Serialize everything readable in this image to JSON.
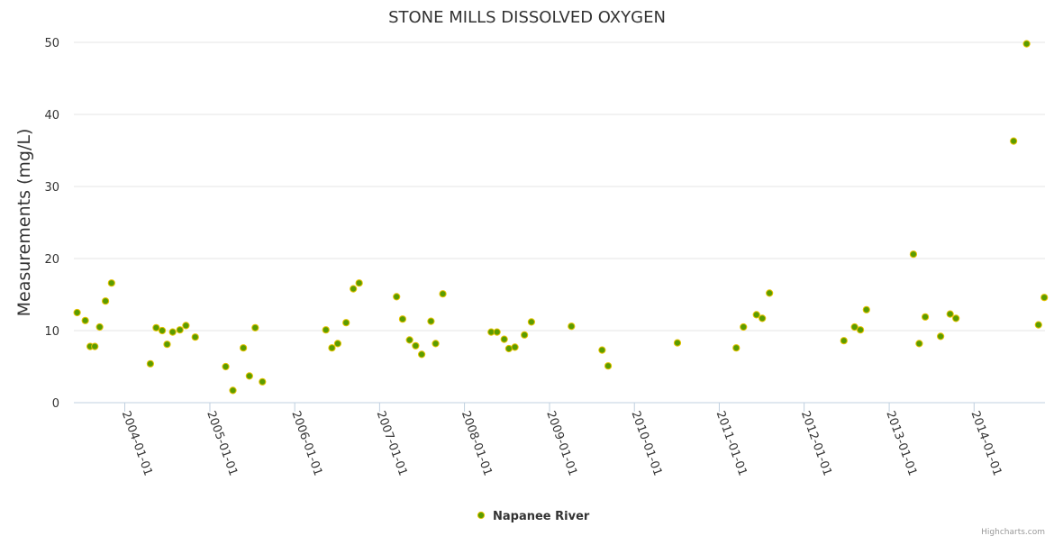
{
  "chart_data": {
    "type": "scatter",
    "title": "STONE MILLS DISSOLVED OXYGEN",
    "xlabel": "",
    "ylabel": "Measurements (mg/L)",
    "ylim": [
      0,
      50
    ],
    "yticks": [
      0,
      10,
      20,
      30,
      40,
      50
    ],
    "xlim": [
      "2003-05-27",
      "2014-11-02"
    ],
    "xticks": [
      "2004-01-01",
      "2005-01-01",
      "2006-01-01",
      "2007-01-01",
      "2008-01-01",
      "2009-01-01",
      "2010-01-01",
      "2011-01-01",
      "2012-01-01",
      "2013-01-01",
      "2014-01-01"
    ],
    "grid": true,
    "legend_position": "bottom-center",
    "series": [
      {
        "name": "Napanee River",
        "color": "#5b9c00",
        "edge_color": "#e6c200",
        "points": [
          [
            "2003-06-10",
            12.5
          ],
          [
            "2003-07-15",
            11.4
          ],
          [
            "2003-08-05",
            7.8
          ],
          [
            "2003-08-25",
            7.8
          ],
          [
            "2003-09-15",
            10.5
          ],
          [
            "2003-10-10",
            14.1
          ],
          [
            "2003-11-05",
            16.6
          ],
          [
            "2004-04-20",
            5.4
          ],
          [
            "2004-05-15",
            10.4
          ],
          [
            "2004-06-10",
            10.0
          ],
          [
            "2004-07-01",
            8.1
          ],
          [
            "2004-07-25",
            9.8
          ],
          [
            "2004-08-25",
            10.1
          ],
          [
            "2004-09-20",
            10.7
          ],
          [
            "2004-10-30",
            9.1
          ],
          [
            "2005-03-10",
            5.0
          ],
          [
            "2005-04-10",
            1.7
          ],
          [
            "2005-05-25",
            7.6
          ],
          [
            "2005-06-20",
            3.7
          ],
          [
            "2005-07-15",
            10.4
          ],
          [
            "2005-08-15",
            2.9
          ],
          [
            "2006-05-15",
            10.1
          ],
          [
            "2006-06-10",
            7.6
          ],
          [
            "2006-07-05",
            8.2
          ],
          [
            "2006-08-10",
            11.1
          ],
          [
            "2006-09-10",
            15.8
          ],
          [
            "2006-10-05",
            16.6
          ],
          [
            "2007-03-15",
            14.7
          ],
          [
            "2007-04-10",
            11.6
          ],
          [
            "2007-05-10",
            8.7
          ],
          [
            "2007-06-05",
            7.9
          ],
          [
            "2007-07-01",
            6.7
          ],
          [
            "2007-08-10",
            11.3
          ],
          [
            "2007-08-30",
            8.2
          ],
          [
            "2007-09-30",
            15.1
          ],
          [
            "2008-04-25",
            9.8
          ],
          [
            "2008-05-20",
            9.8
          ],
          [
            "2008-06-20",
            8.8
          ],
          [
            "2008-07-10",
            7.5
          ],
          [
            "2008-08-05",
            7.7
          ],
          [
            "2008-09-15",
            9.4
          ],
          [
            "2008-10-15",
            11.2
          ],
          [
            "2009-04-05",
            10.6
          ],
          [
            "2009-08-15",
            7.3
          ],
          [
            "2009-09-10",
            5.1
          ],
          [
            "2010-07-05",
            8.3
          ],
          [
            "2011-03-15",
            7.6
          ],
          [
            "2011-04-15",
            10.5
          ],
          [
            "2011-06-10",
            12.2
          ],
          [
            "2011-07-05",
            11.7
          ],
          [
            "2011-08-05",
            15.2
          ],
          [
            "2012-06-20",
            8.6
          ],
          [
            "2012-08-05",
            10.5
          ],
          [
            "2012-08-30",
            10.1
          ],
          [
            "2012-09-25",
            12.9
          ],
          [
            "2013-04-15",
            20.6
          ],
          [
            "2013-05-10",
            8.2
          ],
          [
            "2013-06-05",
            11.9
          ],
          [
            "2013-08-10",
            9.2
          ],
          [
            "2013-09-20",
            12.3
          ],
          [
            "2013-10-15",
            11.7
          ],
          [
            "2014-06-20",
            36.3
          ],
          [
            "2014-08-15",
            49.8
          ],
          [
            "2014-10-05",
            10.8
          ],
          [
            "2014-10-30",
            14.6
          ]
        ]
      }
    ]
  },
  "credits": "Highcharts.com"
}
